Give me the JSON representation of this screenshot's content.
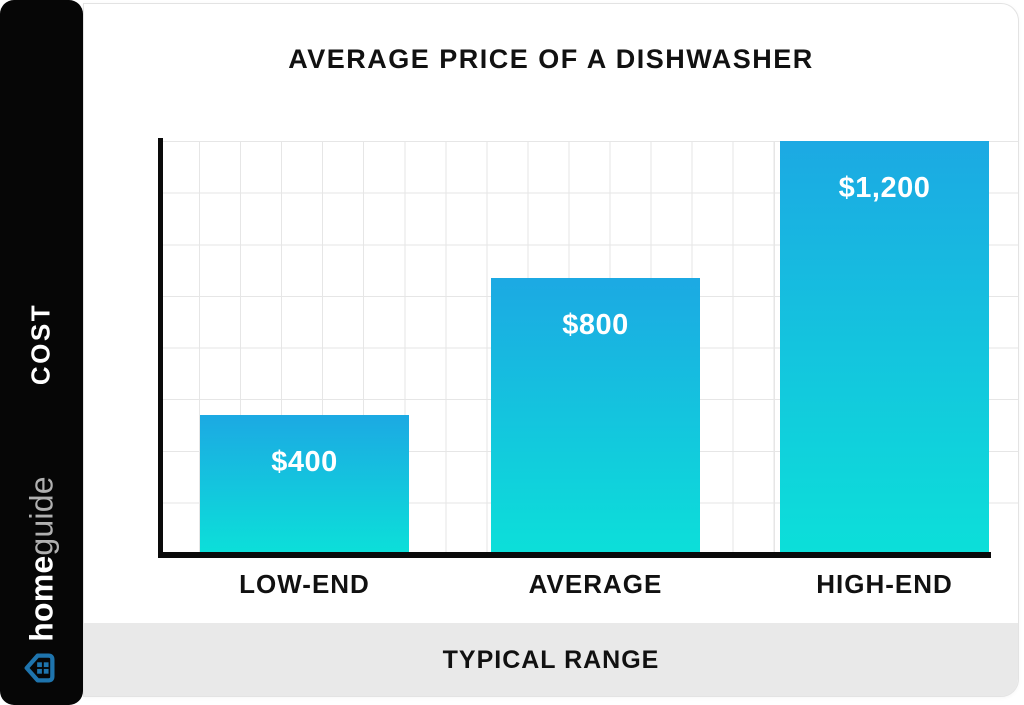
{
  "header": {
    "title": "AVERAGE PRICE OF A DISHWASHER"
  },
  "sidebar": {
    "axis_label": "COST",
    "brand": {
      "bold": "home",
      "light": "guide"
    },
    "icon": "homeguide-house-icon"
  },
  "footer": {
    "label": "TYPICAL RANGE"
  },
  "chart_data": {
    "type": "bar",
    "title": "AVERAGE PRICE OF A DISHWASHER",
    "categories": [
      "LOW-END",
      "AVERAGE",
      "HIGH-END"
    ],
    "values": [
      400,
      800,
      1200
    ],
    "value_labels": [
      "$400",
      "$800",
      "$1,200"
    ],
    "xlabel": "TYPICAL RANGE",
    "ylabel": "COST",
    "ylim": [
      0,
      1200
    ],
    "grid": true,
    "legend": false,
    "value_label_position": "inside-top",
    "bar_gradient": {
      "top": "#1ca9e3",
      "bottom": "#0cdfd9"
    }
  },
  "colors": {
    "sidebar_bg": "#060606",
    "footer_bg": "#e9e9e9",
    "icon_blue": "#1e74ad",
    "brand_light": "#b0b0b0",
    "text": "#111111"
  }
}
